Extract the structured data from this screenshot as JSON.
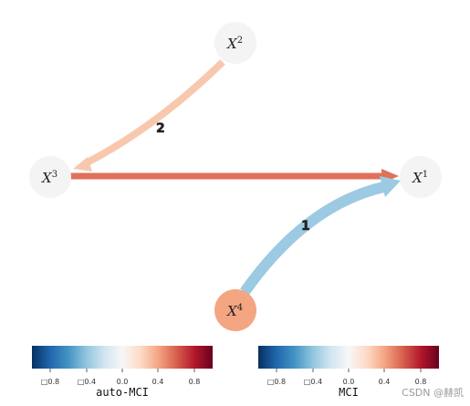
{
  "nodes": [
    {
      "id": "X2",
      "base": "X",
      "sup": "2",
      "color": "#f4f4f4"
    },
    {
      "id": "X3",
      "base": "X",
      "sup": "3",
      "color": "#f4f4f4"
    },
    {
      "id": "X1",
      "base": "X",
      "sup": "1",
      "color": "#f4f4f4"
    },
    {
      "id": "X4",
      "base": "X",
      "sup": "4",
      "color": "#f4a582"
    }
  ],
  "edges": [
    {
      "from": "X2",
      "to": "X3",
      "label": "2",
      "color": "#f8c8ae"
    },
    {
      "from": "X3",
      "to": "X1",
      "label": "",
      "color": "#e0705a"
    },
    {
      "from": "X4",
      "to": "X1",
      "label": "1",
      "color": "#9ccae2"
    }
  ],
  "colorbars": [
    {
      "title": "auto-MCI",
      "ticks": [
        "□0.8",
        "□0.4",
        "0.0",
        "0.4",
        "0.8"
      ]
    },
    {
      "title": "MCI",
      "ticks": [
        "□0.8",
        "□0.4",
        "0.0",
        "0.4",
        "0.8"
      ]
    }
  ],
  "colormap": [
    "#053061",
    "#2166ac",
    "#4393c3",
    "#92c5de",
    "#d1e5f0",
    "#f7f7f7",
    "#fddbc7",
    "#f4a582",
    "#d6604d",
    "#b2182b",
    "#67001f"
  ],
  "watermark": "CSDN @赫凯"
}
